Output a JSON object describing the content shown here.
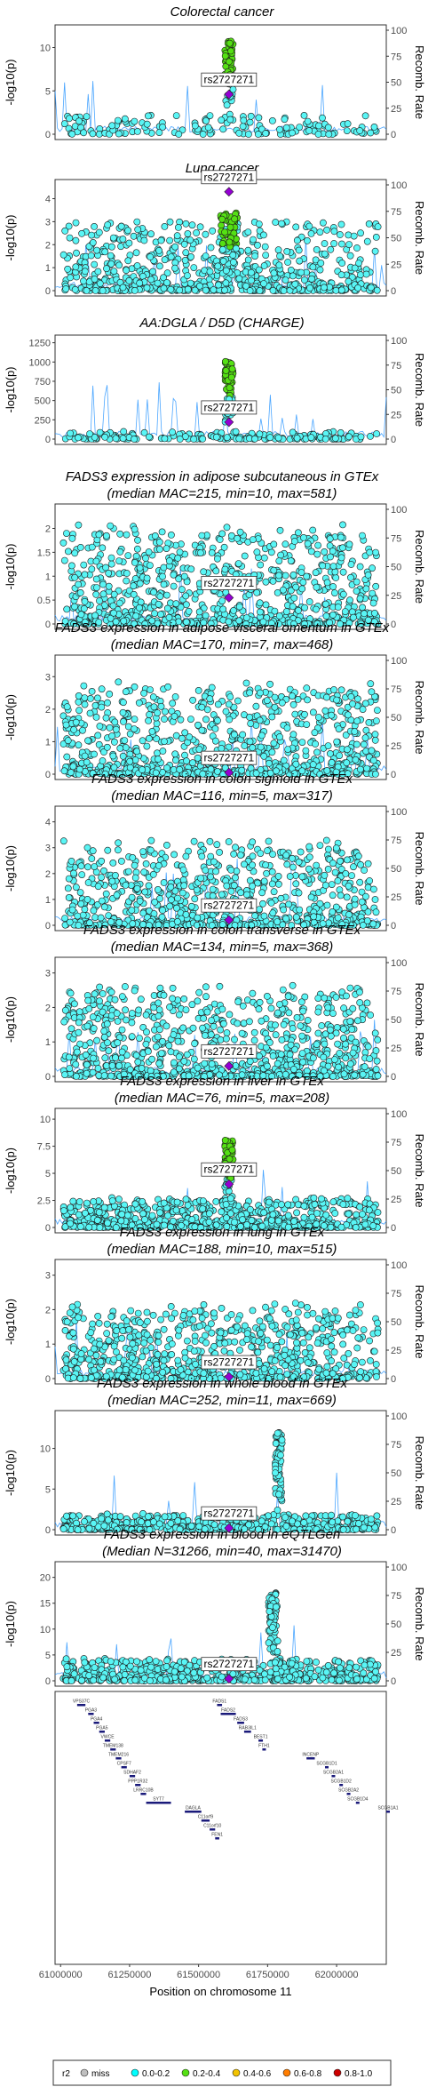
{
  "chart_data": [
    {
      "type": "scatter",
      "title": "Colorectal cancer",
      "subtitle": "",
      "ylabel": "-log10(p)",
      "y2label": "Recomb. Rate",
      "yticks": [
        0,
        5,
        10
      ],
      "ymax": 12,
      "y2ticks": [
        0,
        25,
        50,
        75,
        100
      ],
      "snp_label": "rs2727271",
      "lead_y": 4.6,
      "peak": {
        "center": 61610000,
        "width": 30000,
        "top": 11,
        "ld_top": "0.2-0.4"
      },
      "background_max": 2.2,
      "density": 150
    },
    {
      "type": "scatter",
      "title": "Lung cancer",
      "subtitle": "",
      "ylabel": "-log10(p)",
      "y2label": "Recomb. Rate",
      "yticks": [
        0,
        1,
        2,
        3,
        4
      ],
      "ymax": 4.6,
      "y2ticks": [
        0,
        25,
        50,
        75,
        100
      ],
      "snp_label": "rs2727271",
      "lead_y": 4.3,
      "peak": {
        "center": 61610000,
        "width": 60000,
        "top": 3.4,
        "ld_top": "0.2-0.4"
      },
      "background_max": 3.0,
      "density": 650
    },
    {
      "type": "scatter",
      "title": "AA:DGLA / D5D (CHARGE)",
      "subtitle": "",
      "ylabel": "-log10(p)",
      "y2label": "Recomb. Rate",
      "yticks": [
        0,
        250,
        500,
        750,
        1000,
        1250
      ],
      "ymax": 1280,
      "y2ticks": [
        0,
        25,
        50,
        75,
        100
      ],
      "snp_label": "rs2727271",
      "lead_y": 220,
      "peak": {
        "center": 61610000,
        "width": 30000,
        "top": 1010,
        "ld_top": "0.2-0.4"
      },
      "background_max": 100,
      "density": 170
    },
    {
      "type": "scatter",
      "title": "FADS3 expression in adipose subcutaneous in GTEx",
      "subtitle": "(median MAC=215, min=10, max=581)",
      "ylabel": "-log10(p)",
      "y2label": "Recomb. Rate",
      "yticks": [
        0,
        0.5,
        1,
        1.5,
        2
      ],
      "ymax": 2.4,
      "y2ticks": [
        0,
        25,
        50,
        75,
        100
      ],
      "snp_label": "rs2727271",
      "lead_y": 0.55,
      "peak": null,
      "background_max": 1.9,
      "density": 800
    },
    {
      "type": "scatter",
      "title": "FADS3 expression in adipose visceral omentum in GTEx",
      "subtitle": "(median MAC=170, min=7, max=468)",
      "ylabel": "-log10(p)",
      "y2label": "Recomb. Rate",
      "yticks": [
        0,
        1,
        2,
        3
      ],
      "ymax": 3.5,
      "y2ticks": [
        0,
        25,
        50,
        75,
        100
      ],
      "snp_label": "rs2727271",
      "lead_y": 0.05,
      "peak": null,
      "background_max": 2.6,
      "density": 800
    },
    {
      "type": "scatter",
      "title": "FADS3 expression in colon sigmoid in GTEx",
      "subtitle": "(median MAC=116, min=5, max=317)",
      "ylabel": "-log10(p)",
      "y2label": "Recomb. Rate",
      "yticks": [
        0,
        1,
        2,
        3,
        4
      ],
      "ymax": 4.4,
      "y2ticks": [
        0,
        25,
        50,
        75,
        100
      ],
      "snp_label": "rs2727271",
      "lead_y": 0.2,
      "peak": null,
      "background_max": 3.0,
      "density": 750
    },
    {
      "type": "scatter",
      "title": "FADS3 expression in colon transverse in GTEx",
      "subtitle": "(median MAC=134, min=5, max=368)",
      "ylabel": "-log10(p)",
      "y2label": "Recomb. Rate",
      "yticks": [
        0,
        1,
        2,
        3
      ],
      "ymax": 3.3,
      "y2ticks": [
        0,
        25,
        50,
        75,
        100
      ],
      "snp_label": "rs2727271",
      "lead_y": 0.3,
      "peak": null,
      "background_max": 2.4,
      "density": 850
    },
    {
      "type": "scatter",
      "title": "FADS3 expression in liver in GTEx",
      "subtitle": "(median MAC=76, min=5, max=208)",
      "ylabel": "-log10(p)",
      "y2label": "Recomb. Rate",
      "yticks": [
        0,
        2.5,
        5,
        7.5,
        10
      ],
      "ymax": 10.5,
      "y2ticks": [
        0,
        25,
        50,
        75,
        100
      ],
      "snp_label": "rs2727271",
      "lead_y": 4.0,
      "peak": {
        "center": 61610000,
        "width": 30000,
        "top": 8.2,
        "ld_top": "0.2-0.4"
      },
      "background_max": 2.5,
      "density": 700
    },
    {
      "type": "scatter",
      "title": "FADS3 expression in lung in GTEx",
      "subtitle": "(median MAC=188, min=10, max=515)",
      "ylabel": "-log10(p)",
      "y2label": "Recomb. Rate",
      "yticks": [
        0,
        1,
        2,
        3
      ],
      "ymax": 3.3,
      "y2ticks": [
        0,
        25,
        50,
        75,
        100
      ],
      "snp_label": "rs2727271",
      "lead_y": 0.05,
      "peak": null,
      "background_max": 2.0,
      "density": 750
    },
    {
      "type": "scatter",
      "title": "FADS3 expression in whole blood in GTEx",
      "subtitle": "(median MAC=252, min=11, max=669)",
      "ylabel": "-log10(p)",
      "y2label": "Recomb. Rate",
      "yticks": [
        0,
        5,
        10
      ],
      "ymax": 14,
      "y2ticks": [
        0,
        25,
        50,
        75,
        100
      ],
      "snp_label": "rs2727271",
      "lead_y": 0.2,
      "peak": {
        "center": 61790000,
        "width": 25000,
        "top": 12,
        "ld_top": "0.0-0.2"
      },
      "background_max": 1.8,
      "density": 500
    },
    {
      "type": "scatter",
      "title": "FADS3 expression in blood in eQTLGen",
      "subtitle": "(Median N=31266, min=40, max=31470)",
      "ylabel": "-log10(p)",
      "y2label": "Recomb. Rate",
      "yticks": [
        0,
        5,
        10,
        15,
        20
      ],
      "ymax": 22,
      "y2ticks": [
        0,
        25,
        50,
        75,
        100
      ],
      "snp_label": "rs2727271",
      "lead_y": 0.4,
      "peak": {
        "center": 61770000,
        "width": 35000,
        "top": 17,
        "ld_top": "0.0-0.2"
      },
      "background_max": 4.0,
      "density": 600
    }
  ],
  "x_axis": {
    "label": "Position on chromosome 11",
    "ticks": [
      61000000,
      61250000,
      61500000,
      61750000,
      62000000
    ],
    "tick_labels": [
      "61000000",
      "61250000",
      "61500000",
      "61750000",
      "62000000"
    ],
    "range": [
      60980000,
      62180000
    ]
  },
  "genes": [
    {
      "name": "VPS37C",
      "start": 61060000,
      "end": 61090000,
      "row": 0
    },
    {
      "name": "PGA3",
      "start": 61100000,
      "end": 61120000,
      "row": 1
    },
    {
      "name": "PGA4",
      "start": 61120000,
      "end": 61140000,
      "row": 2
    },
    {
      "name": "PGA5",
      "start": 61140000,
      "end": 61160000,
      "row": 3
    },
    {
      "name": "VWCE",
      "start": 61160000,
      "end": 61180000,
      "row": 4
    },
    {
      "name": "TMEM138",
      "start": 61180000,
      "end": 61200000,
      "row": 5
    },
    {
      "name": "TMEM216",
      "start": 61200000,
      "end": 61220000,
      "row": 6
    },
    {
      "name": "CPSF7",
      "start": 61220000,
      "end": 61240000,
      "row": 7
    },
    {
      "name": "SDHAF2",
      "start": 61250000,
      "end": 61270000,
      "row": 8
    },
    {
      "name": "PPP1R32",
      "start": 61270000,
      "end": 61290000,
      "row": 9
    },
    {
      "name": "LRRC10B",
      "start": 61290000,
      "end": 61310000,
      "row": 10
    },
    {
      "name": "SYT7",
      "start": 61310000,
      "end": 61400000,
      "row": 11
    },
    {
      "name": "DAGLA",
      "start": 61450000,
      "end": 61510000,
      "row": 12
    },
    {
      "name": "C11orf9",
      "start": 61510000,
      "end": 61540000,
      "row": 13
    },
    {
      "name": "C11orf10",
      "start": 61540000,
      "end": 61560000,
      "row": 14
    },
    {
      "name": "FEN1",
      "start": 61560000,
      "end": 61575000,
      "row": 15
    },
    {
      "name": "FADS1",
      "start": 61567000,
      "end": 61585000,
      "row": 0
    },
    {
      "name": "FADS2",
      "start": 61580000,
      "end": 61635000,
      "row": 1
    },
    {
      "name": "FADS3",
      "start": 61640000,
      "end": 61665000,
      "row": 2
    },
    {
      "name": "RAB3IL1",
      "start": 61665000,
      "end": 61690000,
      "row": 3
    },
    {
      "name": "BEST1",
      "start": 61717000,
      "end": 61733000,
      "row": 4
    },
    {
      "name": "FTH1",
      "start": 61731000,
      "end": 61735000,
      "row": 5
    },
    {
      "name": "INCENP",
      "start": 61891000,
      "end": 61921000,
      "row": 6
    },
    {
      "name": "SCGB1D1",
      "start": 61958000,
      "end": 61962000,
      "row": 7
    },
    {
      "name": "SCGB2A1",
      "start": 61982000,
      "end": 61986000,
      "row": 8
    },
    {
      "name": "SCGB1D2",
      "start": 62010000,
      "end": 62014000,
      "row": 9
    },
    {
      "name": "SCGB2A2",
      "start": 62037000,
      "end": 62041000,
      "row": 10
    },
    {
      "name": "SCGB1D4",
      "start": 62070000,
      "end": 62080000,
      "row": 11
    },
    {
      "name": "SCGB1A1",
      "start": 62180000,
      "end": 62190000,
      "row": 12
    }
  ],
  "legend": {
    "title": "r2",
    "items": [
      {
        "label": "miss",
        "color": "#bfbfbf"
      },
      {
        "label": "0.0-0.2",
        "color": "#00ffff"
      },
      {
        "label": "0.2-0.4",
        "color": "#55e014"
      },
      {
        "label": "0.4-0.6",
        "color": "#f2c300"
      },
      {
        "label": "0.6-0.8",
        "color": "#ff7d00"
      },
      {
        "label": "0.8-1.0",
        "color": "#cc0000"
      }
    ],
    "lead_color": "#9400d3",
    "recomb_line_color": "#1e90ff",
    "point_fill": "#59f5f5",
    "point_stroke": "#1a1a1a"
  }
}
